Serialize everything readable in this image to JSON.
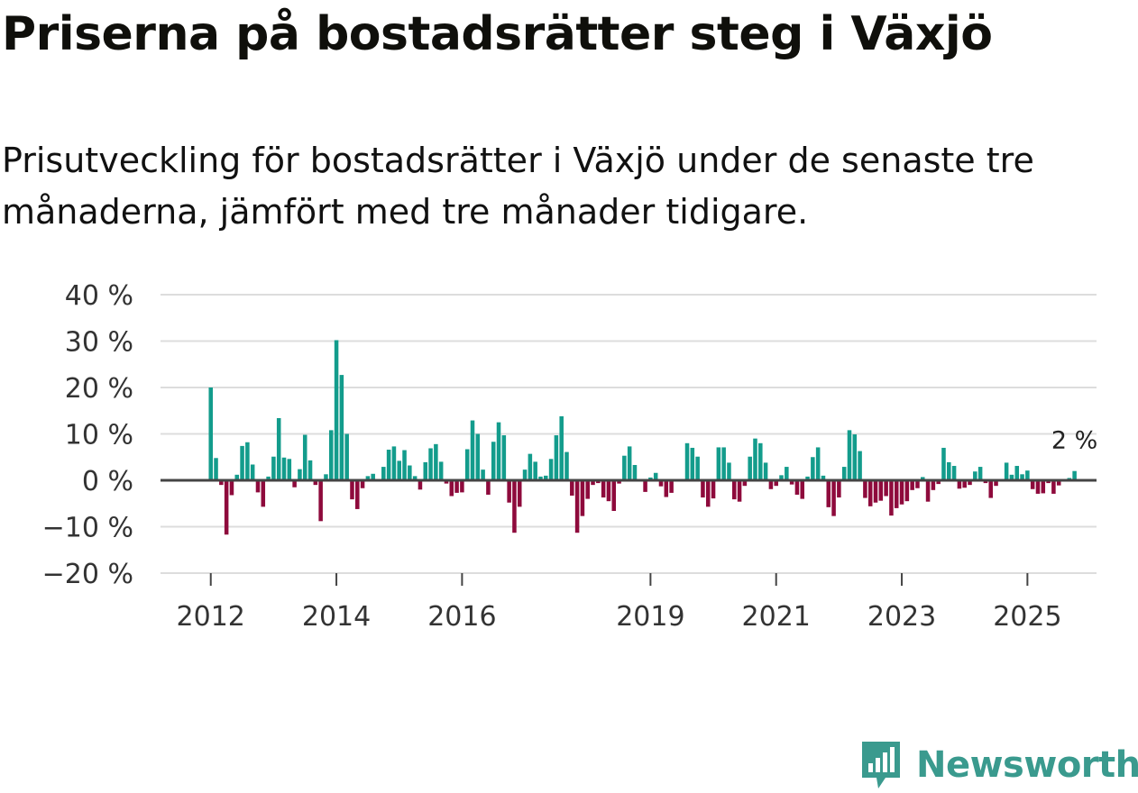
{
  "title": "Priserna på bostadsrätter steg i Växjö",
  "subtitle": "Prisutveckling för bostadsrätter i Växjö under de senaste tre månaderna, jämfört med tre månader tidigare.",
  "brand": {
    "name": "Newsworthy",
    "logo_icon": "newsworthy-chart-bubble-icon"
  },
  "colors": {
    "positive": "#139c8c",
    "negative": "#8e0a3c",
    "grid": "#dddddd",
    "zero_line": "#444444",
    "brand": "#3a9a8e"
  },
  "chart_data": {
    "type": "bar",
    "title": "Priserna på bostadsrätter steg i Växjö",
    "xlabel": "",
    "ylabel": "",
    "ylim": [
      -20,
      40
    ],
    "y_ticks": [
      -20,
      -10,
      0,
      10,
      20,
      30,
      40
    ],
    "y_tick_labels": [
      "−20 %",
      "−10 %",
      "0 %",
      "10 %",
      "20 %",
      "30 %",
      "40 %"
    ],
    "x_ticks": [
      2012,
      2014,
      2016,
      2019,
      2021,
      2023,
      2025
    ],
    "x_tick_labels": [
      "2012",
      "2014",
      "2016",
      "2019",
      "2021",
      "2023",
      "2025"
    ],
    "x_range": [
      2011.2,
      2026.1
    ],
    "start": {
      "year": 2012,
      "month": 1
    },
    "frequency": "monthly",
    "values": [
      20.0,
      4.8,
      -1.0,
      -11.7,
      -3.2,
      1.2,
      7.4,
      8.2,
      3.4,
      -2.6,
      -5.7,
      0.8,
      5.1,
      13.4,
      4.9,
      4.6,
      -1.5,
      2.4,
      9.8,
      4.3,
      -1.0,
      -8.8,
      1.3,
      10.8,
      30.2,
      22.7,
      10.0,
      -4.1,
      -6.2,
      -1.7,
      0.9,
      1.4,
      0.0,
      2.9,
      6.6,
      7.3,
      4.2,
      6.5,
      3.2,
      0.9,
      -2.0,
      3.9,
      6.9,
      7.8,
      4.0,
      -0.7,
      -3.4,
      -2.7,
      -2.6,
      6.7,
      12.9,
      10.0,
      2.3,
      -3.1,
      8.3,
      12.5,
      9.7,
      -4.8,
      -11.3,
      -5.7,
      2.3,
      5.7,
      4.0,
      0.8,
      1.0,
      4.6,
      9.7,
      13.8,
      6.1,
      -3.3,
      -11.3,
      -7.7,
      -4.0,
      -1.0,
      -0.6,
      -3.7,
      -4.5,
      -6.6,
      -0.7,
      5.3,
      7.3,
      3.3,
      0.2,
      -2.5,
      0.6,
      1.6,
      -1.3,
      -3.6,
      -2.7,
      -0.1,
      0.1,
      8.0,
      7.0,
      5.1,
      -3.7,
      -5.7,
      -3.9,
      7.1,
      7.1,
      3.8,
      -4.1,
      -4.6,
      -1.2,
      5.1,
      9.0,
      8.0,
      3.8,
      -1.9,
      -1.2,
      1.1,
      2.9,
      -0.9,
      -3.1,
      -4.0,
      0.8,
      5.0,
      7.1,
      1.0,
      -5.8,
      -7.7,
      -3.7,
      2.9,
      10.8,
      9.9,
      6.3,
      -3.8,
      -5.6,
      -4.8,
      -4.4,
      -3.4,
      -7.6,
      -6.0,
      -5.2,
      -4.5,
      -2.1,
      -1.7,
      0.7,
      -4.6,
      -2.1,
      -0.8,
      7.0,
      3.9,
      3.1,
      -1.8,
      -1.6,
      -1.0,
      1.9,
      2.9,
      -0.6,
      -3.8,
      -1.2,
      -0.1,
      3.8,
      1.2,
      3.1,
      1.3,
      2.1,
      -1.9,
      -2.9,
      -2.8,
      -0.6,
      -2.9,
      -1.1,
      0.1,
      0.5,
      2.0
    ],
    "annotation": {
      "label": "2 %",
      "value": 2.0
    }
  }
}
